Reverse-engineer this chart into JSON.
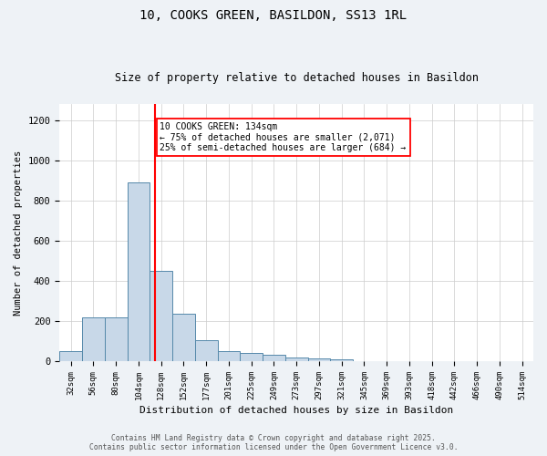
{
  "title1": "10, COOKS GREEN, BASILDON, SS13 1RL",
  "title2": "Size of property relative to detached houses in Basildon",
  "xlabel": "Distribution of detached houses by size in Basildon",
  "ylabel": "Number of detached properties",
  "categories": [
    "32sqm",
    "56sqm",
    "80sqm",
    "104sqm",
    "128sqm",
    "152sqm",
    "177sqm",
    "201sqm",
    "225sqm",
    "249sqm",
    "273sqm",
    "297sqm",
    "321sqm",
    "345sqm",
    "369sqm",
    "393sqm",
    "418sqm",
    "442sqm",
    "466sqm",
    "490sqm",
    "514sqm"
  ],
  "values": [
    50,
    220,
    220,
    890,
    450,
    235,
    105,
    50,
    40,
    30,
    20,
    15,
    8,
    2,
    1,
    1,
    0,
    0,
    0,
    0,
    0
  ],
  "bar_color": "#c8d8e8",
  "bar_edge_color": "#5588aa",
  "annotation_line1": "10 COOKS GREEN: 134sqm",
  "annotation_line2": "← 75% of detached houses are smaller (2,071)",
  "annotation_line3": "25% of semi-detached houses are larger (684) →",
  "ylim": [
    0,
    1280
  ],
  "yticks": [
    0,
    200,
    400,
    600,
    800,
    1000,
    1200
  ],
  "footer1": "Contains HM Land Registry data © Crown copyright and database right 2025.",
  "footer2": "Contains public sector information licensed under the Open Government Licence v3.0.",
  "background_color": "#eef2f6",
  "plot_bg_color": "#ffffff"
}
